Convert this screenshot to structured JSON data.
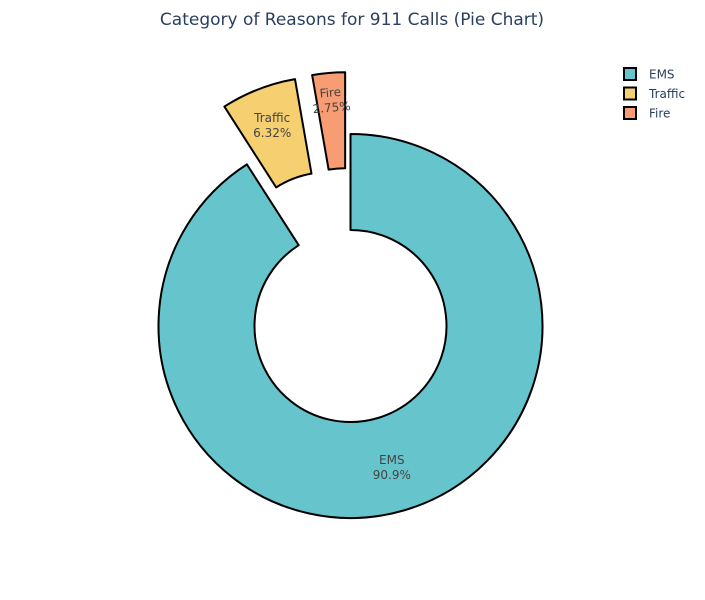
{
  "chart_data": {
    "type": "pie",
    "title": "Category of Reasons for 911 Calls (Pie Chart)",
    "hole": 0.5,
    "legend_position": "top-right",
    "slices": [
      {
        "label": "EMS",
        "value": 90.9,
        "percent_text": "90.9%",
        "color": "#66c5cc"
      },
      {
        "label": "Traffic",
        "value": 6.32,
        "percent_text": "6.32%",
        "color": "#f6cf71"
      },
      {
        "label": "Fire",
        "value": 2.75,
        "percent_text": "2.75%",
        "color": "#f89c74"
      }
    ],
    "pulled_slices": [
      "Traffic",
      "Fire"
    ],
    "outline_color": "#000000"
  }
}
